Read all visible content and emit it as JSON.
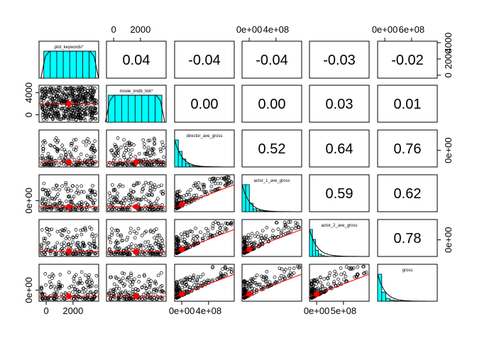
{
  "chart_data": {
    "type": "scatter-matrix",
    "variables": [
      "plot_keywords*",
      "movie_imdb_link*",
      "director_ave_gross",
      "actor_1_ave_gross",
      "actor_2_ave_gross",
      "gross"
    ],
    "correlations": [
      {
        "row": 0,
        "col": 1,
        "value": "0.04"
      },
      {
        "row": 0,
        "col": 2,
        "value": "-0.04"
      },
      {
        "row": 0,
        "col": 3,
        "value": "-0.04"
      },
      {
        "row": 0,
        "col": 4,
        "value": "-0.03"
      },
      {
        "row": 0,
        "col": 5,
        "value": "-0.02"
      },
      {
        "row": 1,
        "col": 2,
        "value": "0.00"
      },
      {
        "row": 1,
        "col": 3,
        "value": "0.00"
      },
      {
        "row": 1,
        "col": 4,
        "value": "0.03"
      },
      {
        "row": 1,
        "col": 5,
        "value": "0.01"
      },
      {
        "row": 2,
        "col": 3,
        "value": "0.52"
      },
      {
        "row": 2,
        "col": 4,
        "value": "0.64"
      },
      {
        "row": 2,
        "col": 5,
        "value": "0.76"
      },
      {
        "row": 3,
        "col": 4,
        "value": "0.59"
      },
      {
        "row": 3,
        "col": 5,
        "value": "0.62"
      },
      {
        "row": 4,
        "col": 5,
        "value": "0.78"
      }
    ],
    "axis_ticks": {
      "top": [
        {
          "col": 1,
          "labels": [
            "0",
            "2000"
          ]
        },
        {
          "col": 3,
          "labels": [
            "0e+00",
            "4e+08"
          ]
        },
        {
          "col": 5,
          "labels": [
            "0e+00",
            "6e+08"
          ]
        }
      ],
      "bottom": [
        {
          "col": 0,
          "labels": [
            "0",
            "2000"
          ]
        },
        {
          "col": 2,
          "labels": [
            "0e+00",
            "4e+08"
          ]
        },
        {
          "col": 4,
          "labels": [
            "0e+00",
            "5e+08"
          ]
        }
      ],
      "left": [
        {
          "row": 1,
          "labels": [
            "0",
            "4000"
          ]
        },
        {
          "row": 3,
          "labels": [
            "0e+00"
          ]
        },
        {
          "row": 5,
          "labels": [
            "0e+00"
          ]
        }
      ],
      "right": [
        {
          "row": 0,
          "labels": [
            "0",
            "2000",
            "4000"
          ]
        },
        {
          "row": 2,
          "labels": [
            "0e+00"
          ]
        },
        {
          "row": 4,
          "labels": [
            "0e+00"
          ]
        }
      ]
    },
    "colors": {
      "histogram_fill": "#00ffff",
      "smooth_line": "#ff0000",
      "points": "#000000"
    }
  }
}
